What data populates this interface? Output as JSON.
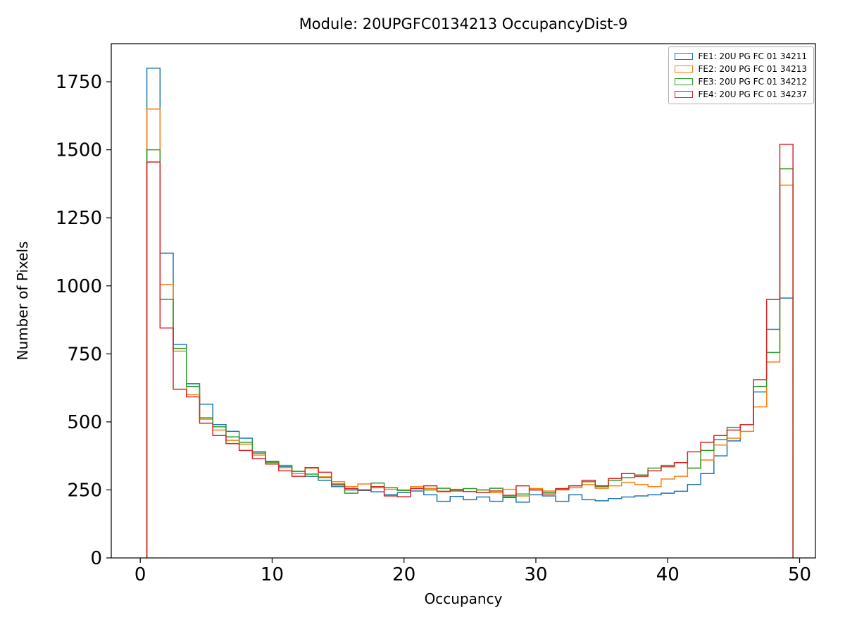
{
  "figure": {
    "title": "Module: 20UPGFC0134213 OccupancyDist-9",
    "xlabel": "Occupancy",
    "ylabel": "Number of Pixels"
  },
  "chart_data": {
    "type": "step-histogram",
    "title": "Module: 20UPGFC0134213 OccupancyDist-9",
    "xlabel": "Occupancy",
    "ylabel": "Number of Pixels",
    "bin_start": 0.5,
    "bin_width": 1,
    "xlim": [
      -2.2,
      51.2
    ],
    "ylim": [
      0,
      1890
    ],
    "xticks": [
      0,
      10,
      20,
      30,
      40,
      50
    ],
    "yticks": [
      0,
      250,
      500,
      750,
      1000,
      1250,
      1500,
      1750
    ],
    "grid": false,
    "legend_position": "upper right",
    "series": [
      {
        "name": "FE1: 20U PG FC 01 34211",
        "color": "#1f77b4",
        "values": [
          1800,
          1120,
          785,
          640,
          565,
          490,
          465,
          440,
          390,
          355,
          335,
          318,
          300,
          285,
          262,
          250,
          248,
          243,
          232,
          240,
          246,
          232,
          208,
          226,
          214,
          224,
          208,
          222,
          205,
          232,
          228,
          208,
          232,
          214,
          210,
          218,
          224,
          228,
          232,
          238,
          245,
          270,
          310,
          375,
          430,
          490,
          610,
          840,
          955
        ]
      },
      {
        "name": "FE2: 20U PG FC 01 34213",
        "color": "#ff7f0e",
        "values": [
          1650,
          1005,
          760,
          600,
          510,
          470,
          432,
          418,
          378,
          350,
          332,
          310,
          330,
          298,
          280,
          262,
          272,
          258,
          252,
          250,
          262,
          255,
          243,
          252,
          244,
          250,
          240,
          252,
          228,
          255,
          246,
          250,
          258,
          270,
          256,
          265,
          278,
          270,
          262,
          290,
          300,
          330,
          360,
          415,
          440,
          465,
          555,
          720,
          1370
        ]
      },
      {
        "name": "FE3: 20U PG FC 01 34212",
        "color": "#2ca02c",
        "values": [
          1500,
          950,
          770,
          630,
          515,
          482,
          445,
          425,
          385,
          352,
          340,
          318,
          308,
          295,
          272,
          238,
          250,
          275,
          258,
          248,
          255,
          250,
          256,
          246,
          255,
          250,
          256,
          225,
          235,
          250,
          240,
          252,
          265,
          280,
          262,
          285,
          295,
          305,
          330,
          340,
          350,
          330,
          395,
          435,
          480,
          490,
          630,
          755,
          1430
        ]
      },
      {
        "name": "FE4: 20U PG FC 01 34237",
        "color": "#d62728",
        "values": [
          1455,
          845,
          620,
          592,
          495,
          450,
          420,
          395,
          365,
          345,
          320,
          300,
          332,
          315,
          268,
          255,
          250,
          262,
          228,
          225,
          255,
          265,
          245,
          250,
          244,
          240,
          246,
          230,
          265,
          250,
          235,
          255,
          265,
          285,
          265,
          292,
          310,
          300,
          320,
          335,
          350,
          390,
          425,
          450,
          470,
          490,
          655,
          950,
          1520
        ]
      }
    ]
  }
}
